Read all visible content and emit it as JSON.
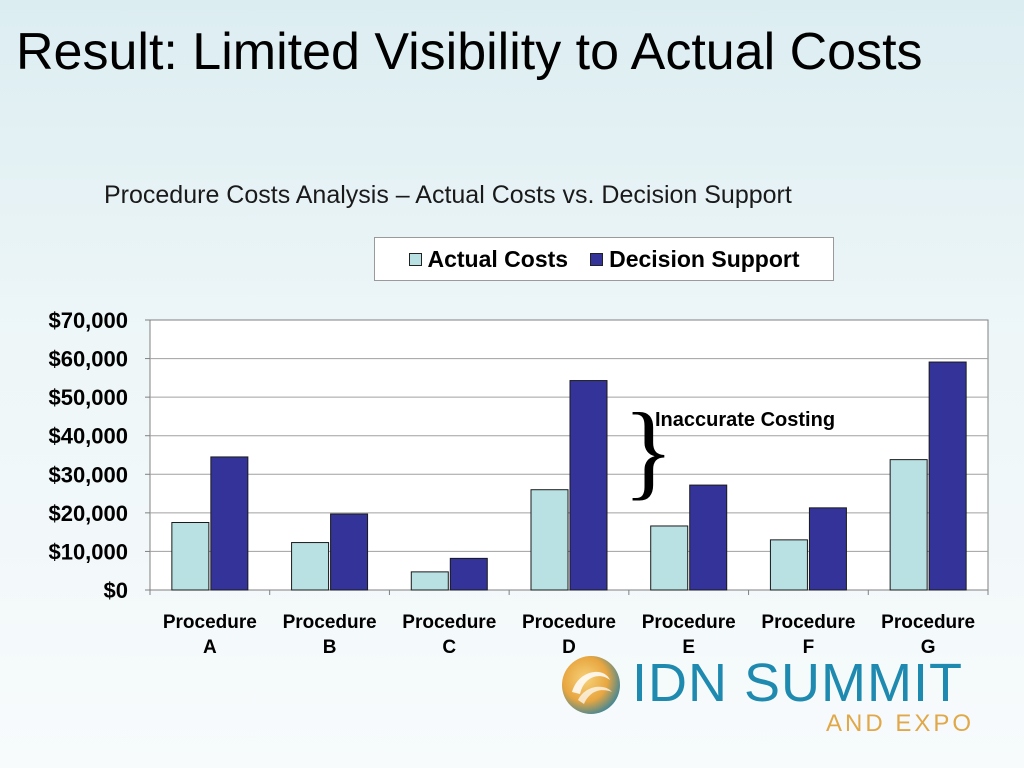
{
  "slide": {
    "title": "Result: Limited Visibility to Actual Costs"
  },
  "chart_data": {
    "type": "bar",
    "title": "Procedure Costs Analysis –  Actual Costs vs. Decision Support",
    "categories": [
      [
        "Procedure",
        "A"
      ],
      [
        "Procedure",
        "B"
      ],
      [
        "Procedure",
        "C"
      ],
      [
        "Procedure",
        "D"
      ],
      [
        "Procedure",
        "E"
      ],
      [
        "Procedure",
        "F"
      ],
      [
        "Procedure",
        "G"
      ]
    ],
    "series": [
      {
        "name": "Actual Costs",
        "color": "#b9e0e3",
        "values": [
          17500,
          12300,
          4700,
          26000,
          16600,
          13000,
          33800
        ]
      },
      {
        "name": "Decision Support",
        "color": "#333399",
        "values": [
          34500,
          19700,
          8200,
          54300,
          27200,
          21300,
          59100
        ]
      }
    ],
    "ylim": [
      0,
      70000
    ],
    "yticks": [
      0,
      10000,
      20000,
      30000,
      40000,
      50000,
      60000,
      70000
    ],
    "ytick_labels": [
      "$0",
      "$10,000",
      "$20,000",
      "$30,000",
      "$40,000",
      "$50,000",
      "$60,000",
      "$70,000"
    ],
    "legend_position": "top",
    "grid": true,
    "annotation": {
      "text": "Inaccurate Costing",
      "symbol": "}",
      "span_values": [
        28000,
        54300
      ],
      "after_category": 3
    }
  },
  "logo": {
    "text": "IDN SUMMIT",
    "subtext": "AND EXPO",
    "icon": "swirl-logo-icon"
  }
}
